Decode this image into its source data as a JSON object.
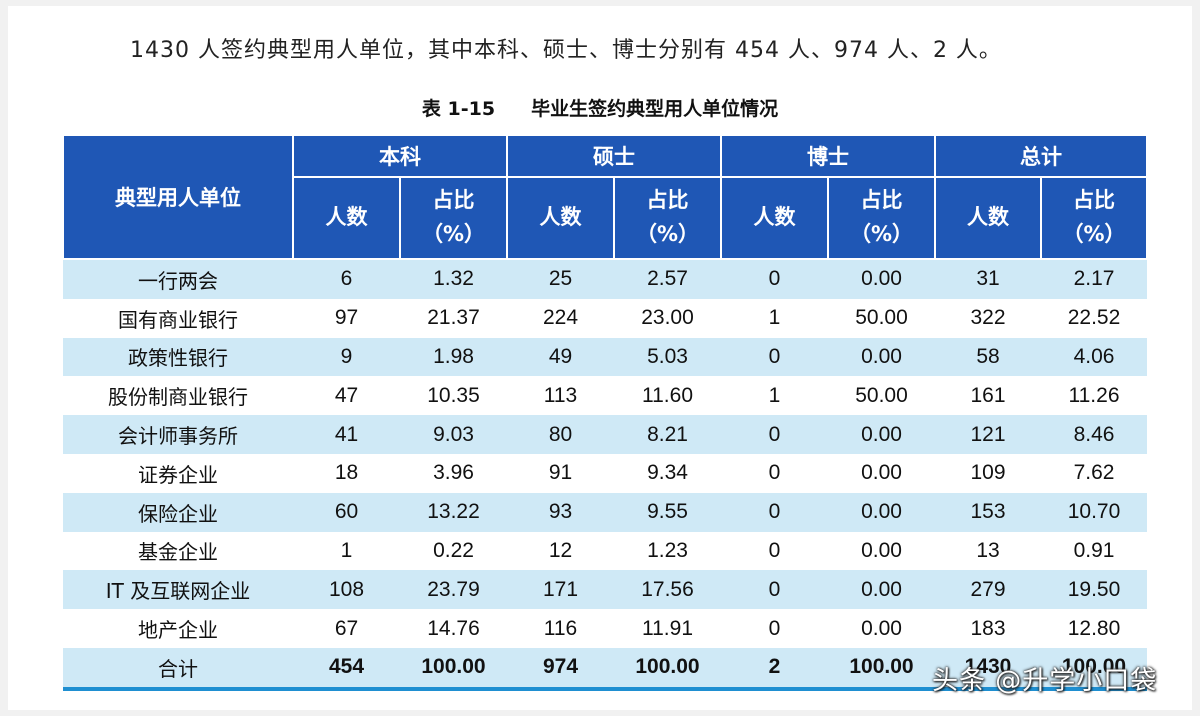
{
  "intro_text": "1430 人签约典型用人单位，其中本科、硕士、博士分别有 454 人、974 人、2 人。",
  "caption": {
    "number": "表 1-15",
    "title": "毕业生签约典型用人单位情况"
  },
  "header": {
    "unit": "典型用人单位",
    "groups": [
      "本科",
      "硕士",
      "博士",
      "总计"
    ],
    "count": "人数",
    "ratio_line1": "占比",
    "ratio_line2": "（%）"
  },
  "rows": [
    {
      "name": "一行两会",
      "v": [
        "6",
        "1.32",
        "25",
        "2.57",
        "0",
        "0.00",
        "31",
        "2.17"
      ]
    },
    {
      "name": "国有商业银行",
      "v": [
        "97",
        "21.37",
        "224",
        "23.00",
        "1",
        "50.00",
        "322",
        "22.52"
      ]
    },
    {
      "name": "政策性银行",
      "v": [
        "9",
        "1.98",
        "49",
        "5.03",
        "0",
        "0.00",
        "58",
        "4.06"
      ]
    },
    {
      "name": "股份制商业银行",
      "v": [
        "47",
        "10.35",
        "113",
        "11.60",
        "1",
        "50.00",
        "161",
        "11.26"
      ]
    },
    {
      "name": "会计师事务所",
      "v": [
        "41",
        "9.03",
        "80",
        "8.21",
        "0",
        "0.00",
        "121",
        "8.46"
      ]
    },
    {
      "name": "证券企业",
      "v": [
        "18",
        "3.96",
        "91",
        "9.34",
        "0",
        "0.00",
        "109",
        "7.62"
      ]
    },
    {
      "name": "保险企业",
      "v": [
        "60",
        "13.22",
        "93",
        "9.55",
        "0",
        "0.00",
        "153",
        "10.70"
      ]
    },
    {
      "name": "基金企业",
      "v": [
        "1",
        "0.22",
        "12",
        "1.23",
        "0",
        "0.00",
        "13",
        "0.91"
      ]
    },
    {
      "name": "IT 及互联网企业",
      "v": [
        "108",
        "23.79",
        "171",
        "17.56",
        "0",
        "0.00",
        "279",
        "19.50"
      ]
    },
    {
      "name": "地产企业",
      "v": [
        "67",
        "14.76",
        "116",
        "11.91",
        "0",
        "0.00",
        "183",
        "12.80"
      ]
    }
  ],
  "total": {
    "name": "合计",
    "v": [
      "454",
      "100.00",
      "974",
      "100.00",
      "2",
      "100.00",
      "1430",
      "100.00"
    ]
  },
  "watermark": "头条 @升学小口袋"
}
